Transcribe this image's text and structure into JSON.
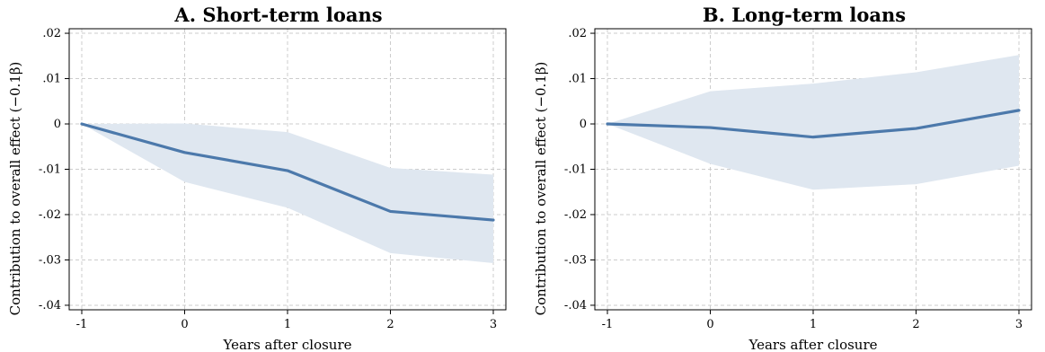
{
  "chart_data": [
    {
      "type": "line",
      "title": "A. Short-term loans",
      "xlabel": "Years after closure",
      "ylabel": "Contribution to overall effect (−0.1β)",
      "x": [
        -1,
        0,
        1,
        2,
        3
      ],
      "x_tick_labels": [
        "-1",
        "0",
        "1",
        "2",
        "3"
      ],
      "y_ticks": [
        0.02,
        0.01,
        0,
        -0.01,
        -0.02,
        -0.03,
        -0.04
      ],
      "y_tick_labels": [
        ".02",
        ".01",
        "0",
        "-.01",
        "-.02",
        "-.03",
        "-.04"
      ],
      "xlim": [
        -1,
        3
      ],
      "ylim": [
        -0.041,
        0.021
      ],
      "grid": true,
      "series": [
        {
          "values": [
            0,
            -0.0063,
            -0.0103,
            -0.0193,
            -0.0212
          ],
          "ci_upper": [
            0,
            0.0001,
            -0.0018,
            -0.0097,
            -0.0112
          ],
          "ci_lower": [
            0,
            -0.0128,
            -0.0185,
            -0.0285,
            -0.0307
          ]
        }
      ],
      "colors": {
        "line": "#4c79ab",
        "band": "#dfe7f0"
      }
    },
    {
      "type": "line",
      "title": "B. Long-term loans",
      "xlabel": "Years after closure",
      "ylabel": "Contribution to overall effect (−0.1β)",
      "x": [
        -1,
        0,
        1,
        2,
        3
      ],
      "x_tick_labels": [
        "-1",
        "0",
        "1",
        "2",
        "3"
      ],
      "y_ticks": [
        0.02,
        0.01,
        0,
        -0.01,
        -0.02,
        -0.03,
        -0.04
      ],
      "y_tick_labels": [
        ".02",
        ".01",
        "0",
        "-.01",
        "-.02",
        "-.03",
        "-.04"
      ],
      "xlim": [
        -1,
        3
      ],
      "ylim": [
        -0.041,
        0.021
      ],
      "grid": true,
      "series": [
        {
          "values": [
            0,
            -0.0008,
            -0.0029,
            -0.001,
            0.003
          ],
          "ci_upper": [
            0,
            0.0072,
            0.0089,
            0.0114,
            0.0152
          ],
          "ci_lower": [
            0,
            -0.0088,
            -0.0145,
            -0.0133,
            -0.0092
          ]
        }
      ],
      "colors": {
        "line": "#4c79ab",
        "band": "#dfe7f0"
      }
    }
  ]
}
